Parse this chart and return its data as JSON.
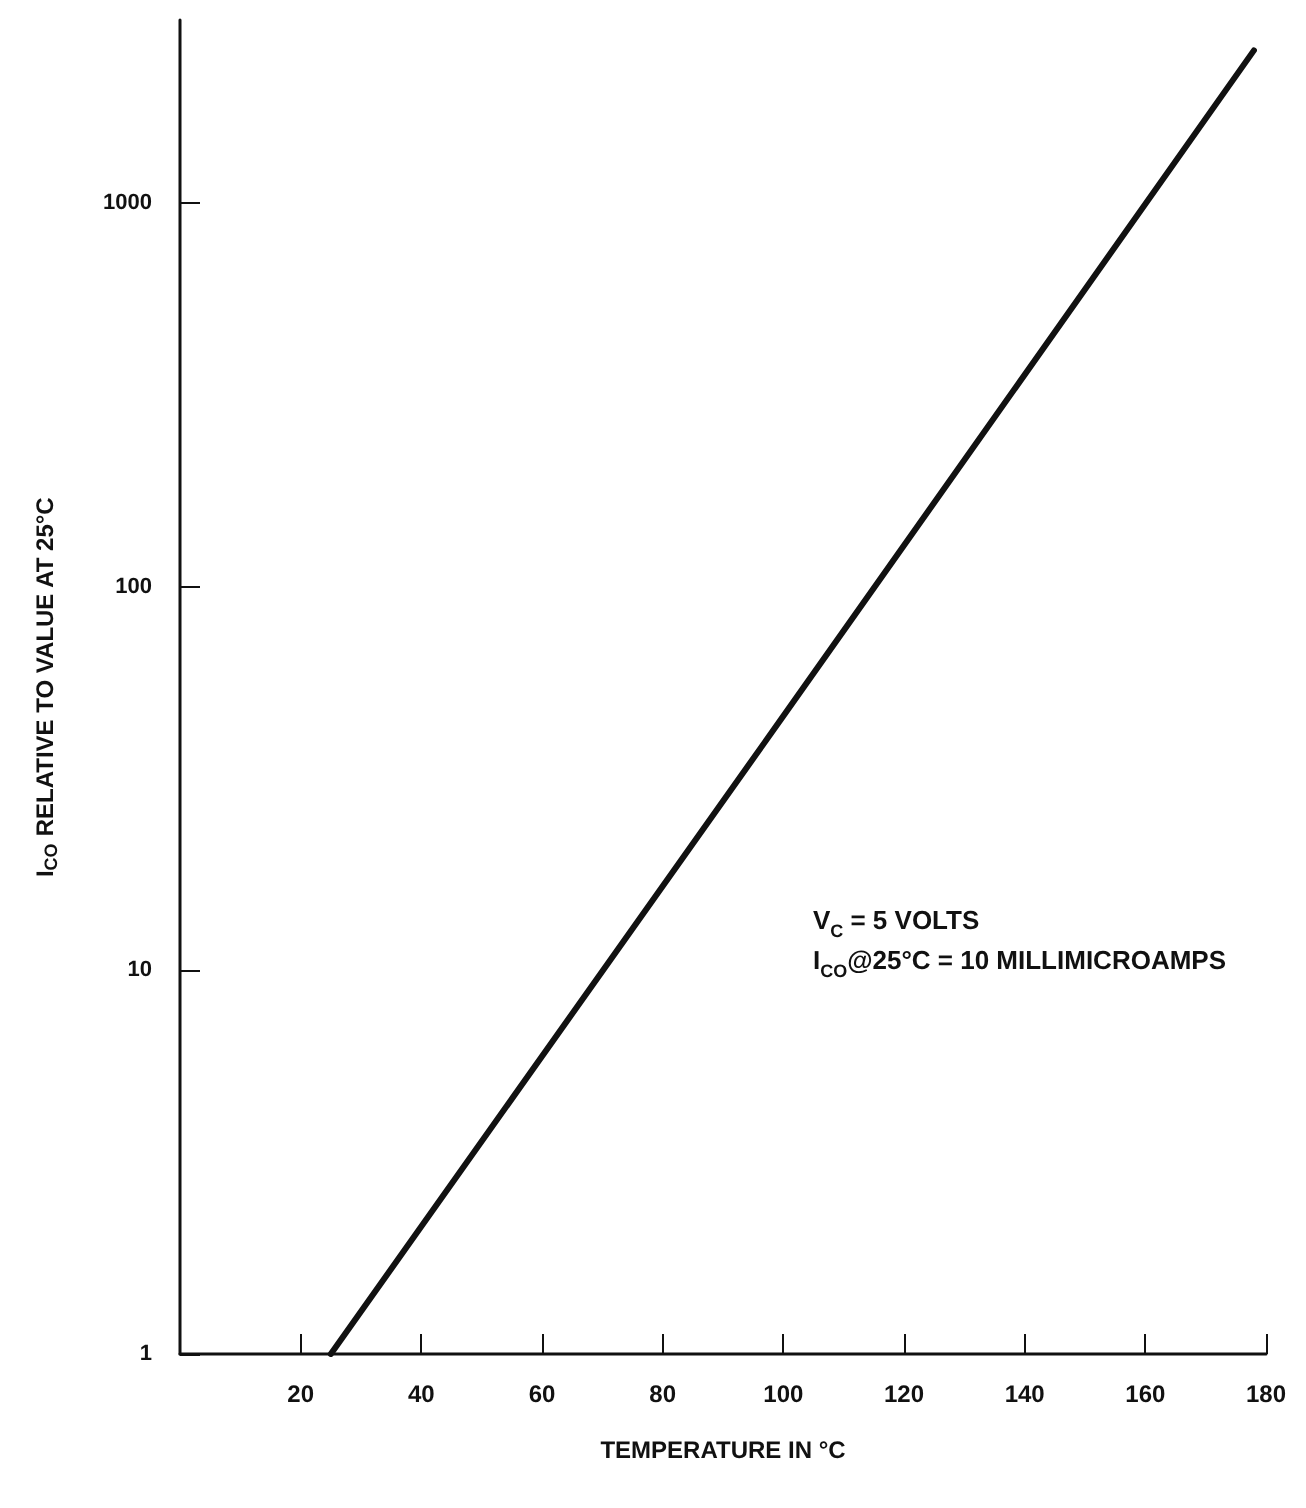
{
  "chart_data": {
    "type": "line",
    "xlabel": "TEMPERATURE IN °C",
    "ylabel": "I$_{CO}$ RELATIVE TO VALUE AT 25°C",
    "annotations": [
      "V$_{C}$ = 5 VOLTS",
      "I$_{CO}$@25°C = 10 MILLIMICROAMPS"
    ],
    "x": [
      25,
      100,
      178
    ],
    "series": [
      {
        "color": "#111111",
        "values": [
          1,
          46,
          2500
        ]
      }
    ],
    "xlim": [
      0,
      180
    ],
    "xticks": [
      20,
      40,
      60,
      80,
      100,
      120,
      140,
      160,
      180
    ],
    "ylim": [
      1,
      3000
    ],
    "yticks": [
      1,
      10,
      100,
      1000
    ],
    "log": "y",
    "grid": false,
    "marker": "none",
    "line_style": "solid"
  }
}
